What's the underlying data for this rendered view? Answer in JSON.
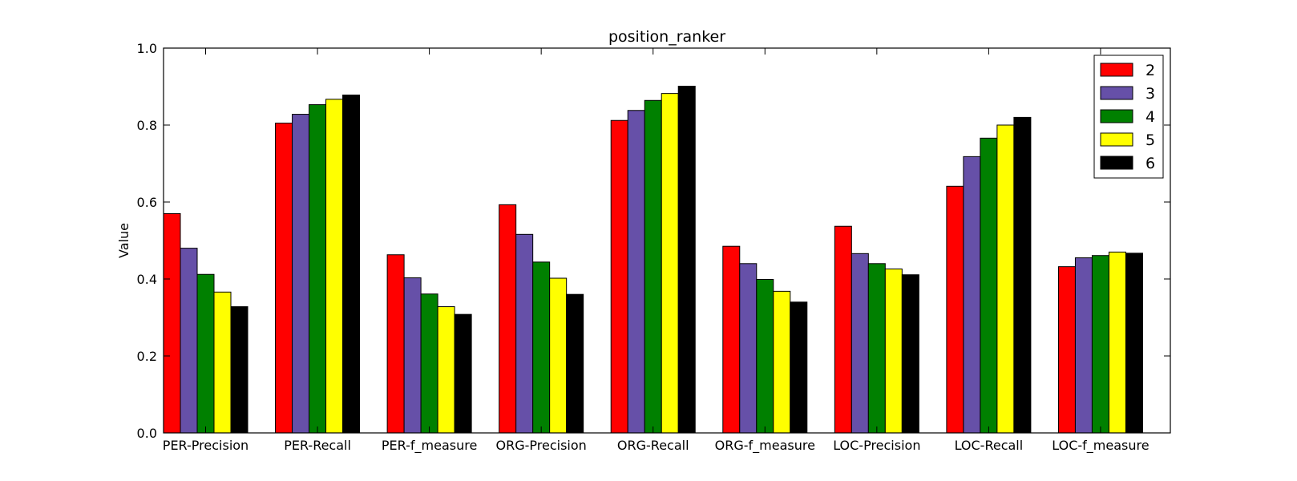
{
  "chart_data": {
    "type": "bar",
    "title": "position_ranker",
    "xlabel": "",
    "ylabel": "Value",
    "ylim": [
      0.0,
      1.0
    ],
    "yticks": [
      "0.0",
      "0.2",
      "0.4",
      "0.6",
      "0.8",
      "1.0"
    ],
    "grid": false,
    "legend_position": "top-right",
    "categories": [
      "PER-Precision",
      "PER-Recall",
      "PER-f_measure",
      "ORG-Precision",
      "ORG-Recall",
      "ORG-f_measure",
      "LOC-Precision",
      "LOC-Recall",
      "LOC-f_measure"
    ],
    "series": [
      {
        "name": "2",
        "color": "#ff0000",
        "values": [
          0.57,
          0.805,
          0.463,
          0.593,
          0.812,
          0.485,
          0.537,
          0.641,
          0.432
        ]
      },
      {
        "name": "3",
        "color": "#6650a8",
        "values": [
          0.48,
          0.828,
          0.403,
          0.516,
          0.838,
          0.44,
          0.466,
          0.718,
          0.455
        ]
      },
      {
        "name": "4",
        "color": "#008000",
        "values": [
          0.412,
          0.853,
          0.361,
          0.444,
          0.864,
          0.399,
          0.44,
          0.766,
          0.461
        ]
      },
      {
        "name": "5",
        "color": "#ffff00",
        "values": [
          0.366,
          0.867,
          0.328,
          0.402,
          0.882,
          0.368,
          0.426,
          0.8,
          0.47
        ]
      },
      {
        "name": "6",
        "color": "#000000",
        "values": [
          0.328,
          0.878,
          0.308,
          0.36,
          0.901,
          0.34,
          0.411,
          0.82,
          0.467
        ]
      }
    ]
  }
}
